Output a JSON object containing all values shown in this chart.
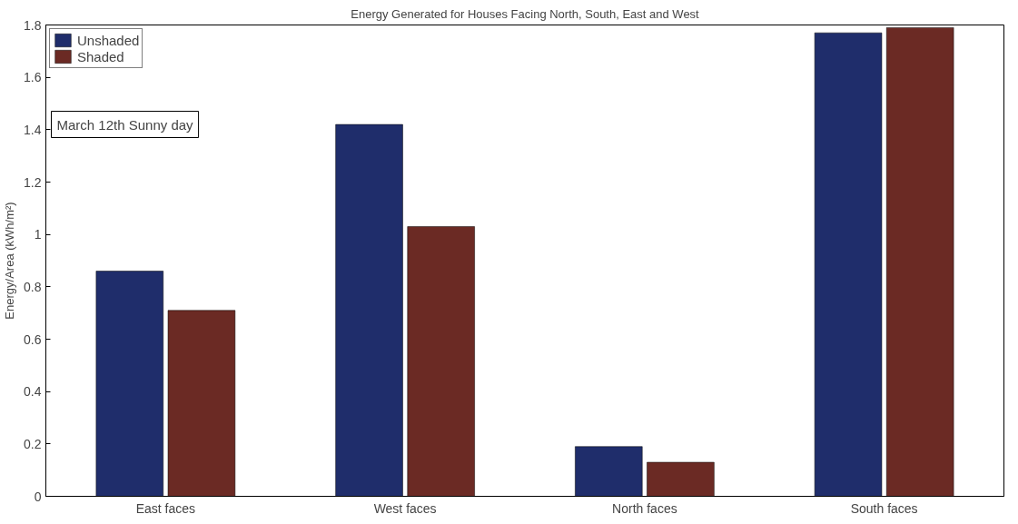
{
  "chart_data": {
    "type": "bar",
    "title": "Energy Generated for Houses Facing North, South, East and West",
    "ylabel": "Energy/Area (kWh/m²)",
    "categories": [
      "East faces",
      "West faces",
      "North faces",
      "South faces"
    ],
    "series": [
      {
        "name": "Unshaded",
        "color": "#1f2d6b",
        "values": [
          0.86,
          1.42,
          0.19,
          1.77
        ]
      },
      {
        "name": "Shaded",
        "color": "#6b2a24",
        "values": [
          0.71,
          1.03,
          0.13,
          1.79
        ]
      }
    ],
    "ylim": [
      0,
      1.8
    ],
    "yticks": [
      0,
      0.2,
      0.4,
      0.6,
      0.8,
      1,
      1.2,
      1.4,
      1.6,
      1.8
    ],
    "grid": false,
    "legend": "top left",
    "annotations": [
      "March 12th Sunny day"
    ]
  }
}
